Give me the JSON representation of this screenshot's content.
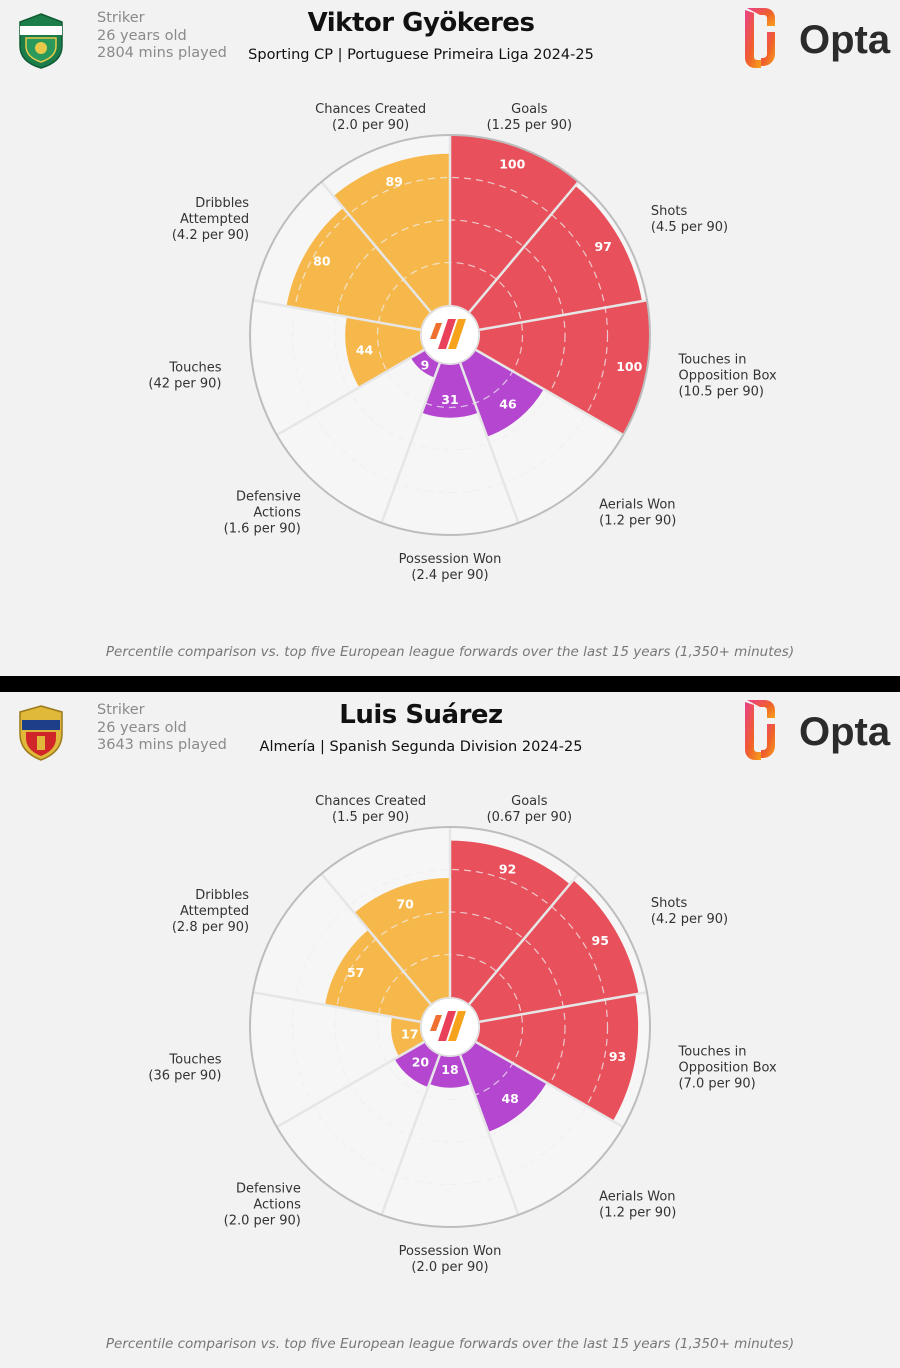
{
  "brand": "Opta",
  "colors": {
    "attack": "#e8505b",
    "creation": "#f7b84b",
    "defence": "#b546d0",
    "background": "#f2f2f2",
    "grid": "#d8d8d8",
    "outline": "#bdbdbd"
  },
  "chart_data": [
    {
      "type": "radar",
      "player": {
        "name": "Viktor Gyökeres",
        "position": "Striker",
        "age": "26 years old",
        "minutes": "2804 mins played",
        "club_league": "Sporting CP | Portuguese Primeira Liga 2024-25"
      },
      "footnote": "Percentile comparison vs. top five European league forwards over the last 15 years (1,350+ minutes)",
      "range": [
        0,
        100
      ],
      "metrics": [
        {
          "name": [
            "Goals"
          ],
          "per90": "(1.25 per 90)",
          "percentile": 100,
          "group": "attack"
        },
        {
          "name": [
            "Shots"
          ],
          "per90": "(4.5 per 90)",
          "percentile": 97,
          "group": "attack"
        },
        {
          "name": [
            "Touches in",
            "Opposition Box"
          ],
          "per90": "(10.5 per 90)",
          "percentile": 100,
          "group": "attack"
        },
        {
          "name": [
            "Aerials Won"
          ],
          "per90": "(1.2 per 90)",
          "percentile": 46,
          "group": "defence"
        },
        {
          "name": [
            "Possession Won"
          ],
          "per90": "(2.4 per 90)",
          "percentile": 31,
          "group": "defence"
        },
        {
          "name": [
            "Defensive",
            "Actions"
          ],
          "per90": "(1.6 per 90)",
          "percentile": 9,
          "group": "defence"
        },
        {
          "name": [
            "Touches"
          ],
          "per90": "(42 per 90)",
          "percentile": 44,
          "group": "creation"
        },
        {
          "name": [
            "Dribbles",
            "Attempted"
          ],
          "per90": "(4.2 per 90)",
          "percentile": 80,
          "group": "creation"
        },
        {
          "name": [
            "Chances Created"
          ],
          "per90": "(2.0 per 90)",
          "percentile": 89,
          "group": "creation"
        }
      ]
    },
    {
      "type": "radar",
      "player": {
        "name": "Luis Suárez",
        "position": "Striker",
        "age": "26 years old",
        "minutes": "3643 mins played",
        "club_league": "Almería | Spanish Segunda Division 2024-25"
      },
      "footnote": "Percentile comparison vs. top five European league forwards over the last 15 years (1,350+ minutes)",
      "range": [
        0,
        100
      ],
      "metrics": [
        {
          "name": [
            "Goals"
          ],
          "per90": "(0.67 per 90)",
          "percentile": 92,
          "group": "attack"
        },
        {
          "name": [
            "Shots"
          ],
          "per90": "(4.2 per 90)",
          "percentile": 95,
          "group": "attack"
        },
        {
          "name": [
            "Touches in",
            "Opposition Box"
          ],
          "per90": "(7.0 per 90)",
          "percentile": 93,
          "group": "attack"
        },
        {
          "name": [
            "Aerials Won"
          ],
          "per90": "(1.2 per 90)",
          "percentile": 48,
          "group": "defence"
        },
        {
          "name": [
            "Possession Won"
          ],
          "per90": "(2.0 per 90)",
          "percentile": 18,
          "group": "defence"
        },
        {
          "name": [
            "Defensive",
            "Actions"
          ],
          "per90": "(2.0 per 90)",
          "percentile": 20,
          "group": "defence"
        },
        {
          "name": [
            "Touches"
          ],
          "per90": "(36 per 90)",
          "percentile": 17,
          "group": "creation"
        },
        {
          "name": [
            "Dribbles",
            "Attempted"
          ],
          "per90": "(2.8 per 90)",
          "percentile": 57,
          "group": "creation"
        },
        {
          "name": [
            "Chances Created"
          ],
          "per90": "(1.5 per 90)",
          "percentile": 70,
          "group": "creation"
        }
      ]
    }
  ]
}
